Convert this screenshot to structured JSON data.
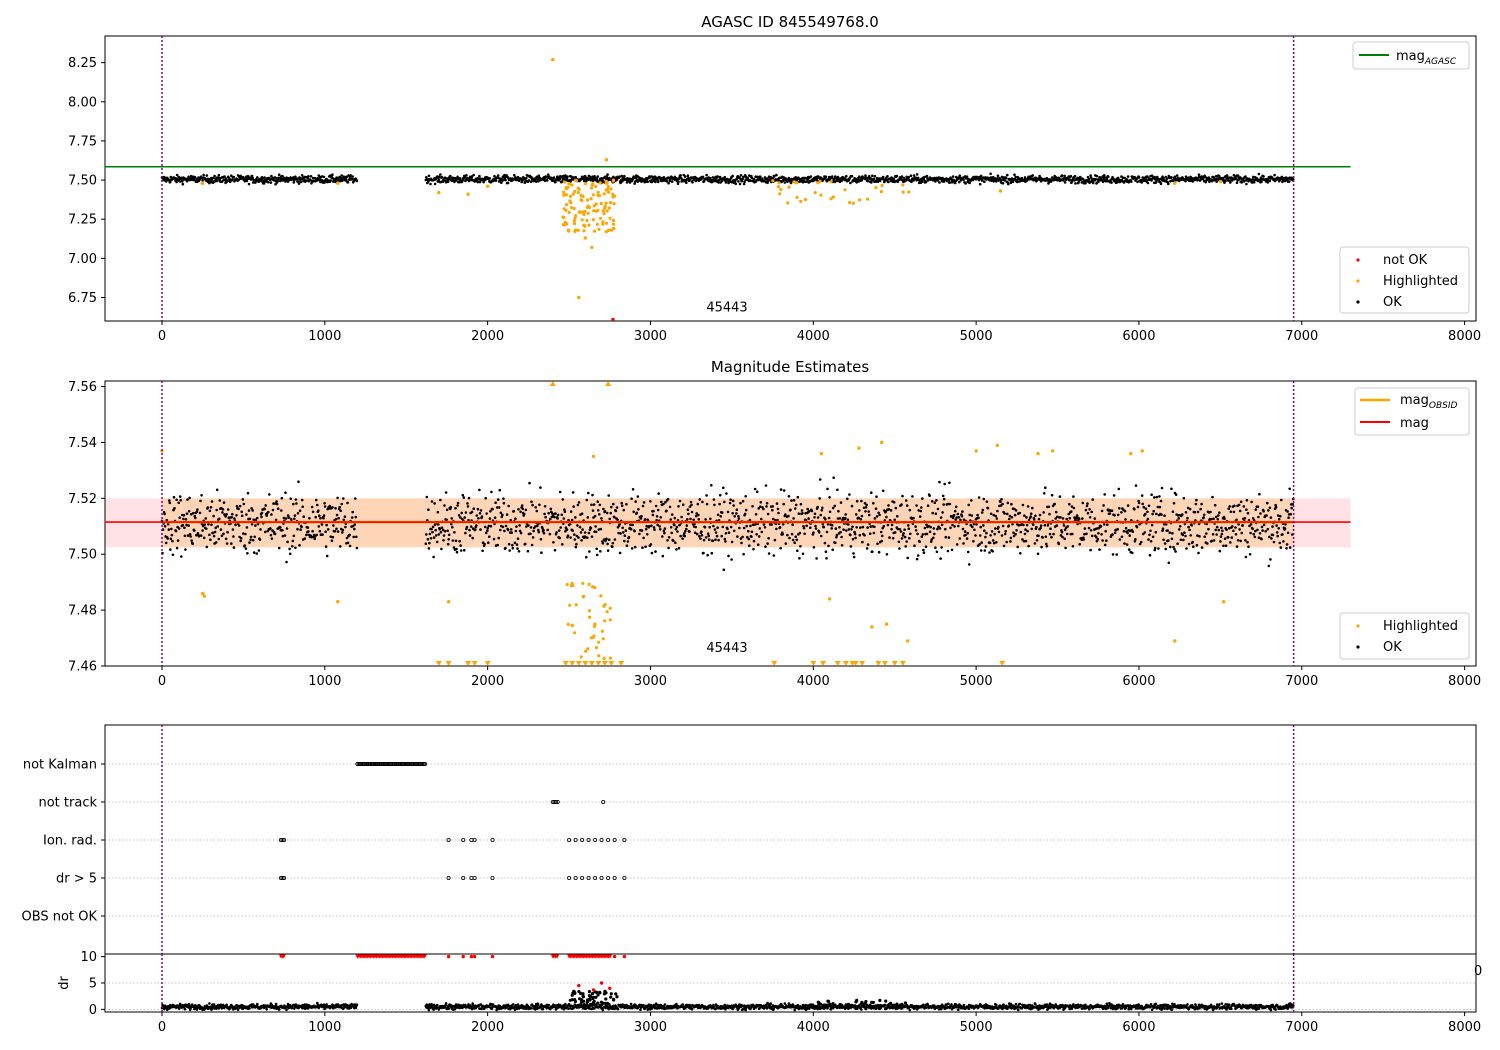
{
  "colors": {
    "ok": "#000000",
    "highlighted": "#ffa500",
    "not_ok": "#ff0000",
    "mag_agasc_line": "#008000",
    "mag_obsid_line": "#ffa500",
    "mag_line": "#ff0000",
    "band_fill": "#ffb6c1",
    "obsid_marker": "#800080"
  },
  "chart_data": [
    {
      "type": "scatter",
      "title": "AGASC ID 845549768.0",
      "xlabel": "",
      "ylabel": "",
      "xlim": [
        -350,
        8070
      ],
      "ylim": [
        6.6,
        8.42
      ],
      "xticks": [
        0,
        1000,
        2000,
        3000,
        4000,
        5000,
        6000,
        7000,
        8000
      ],
      "yticks": [
        6.75,
        7.0,
        7.25,
        7.5,
        7.75,
        8.0,
        8.25
      ],
      "ytick_labels": [
        "6.75",
        "7.00",
        "7.25",
        "7.50",
        "7.75",
        "8.00",
        "8.25"
      ],
      "obsid_lines_x": [
        0,
        6950
      ],
      "annotations": [
        {
          "text": "45443",
          "x": 3470,
          "y": 6.66
        }
      ],
      "reference_lines": [
        {
          "name": "mag",
          "sub": "AGASC",
          "value": 7.585,
          "x": [
            -350,
            7300
          ]
        }
      ],
      "legend_lines": {
        "position": "upper right",
        "entries": [
          {
            "name": "mag",
            "sub": "AGASC"
          }
        ]
      },
      "legend_points": {
        "position": "lower right",
        "entries": [
          "not OK",
          "Highlighted",
          "OK"
        ]
      },
      "series": [
        {
          "name": "OK",
          "kind": "band",
          "segments": [
            [
              0,
              1200
            ],
            [
              1620,
              6950
            ]
          ],
          "center": 7.505,
          "spread": 0.012
        },
        {
          "name": "Highlighted",
          "kind": "cluster",
          "x": [
            2460,
            2780
          ],
          "y": [
            7.17,
            7.5
          ],
          "n": 120
        },
        {
          "name": "Highlighted",
          "kind": "cluster",
          "x": [
            3750,
            4600
          ],
          "y": [
            7.35,
            7.5
          ],
          "n": 30
        },
        {
          "name": "Highlighted",
          "kind": "points",
          "x": [
            2400,
            2560,
            2730,
            2640,
            2600,
            1700,
            1880,
            5150,
            6220,
            6500,
            250,
            1080,
            2000
          ],
          "y": [
            8.27,
            6.75,
            7.63,
            7.07,
            7.13,
            7.42,
            7.41,
            7.43,
            7.48,
            7.49,
            7.48,
            7.48,
            7.46
          ]
        },
        {
          "name": "not OK",
          "kind": "points",
          "x": [
            2770
          ],
          "y": [
            6.61
          ]
        }
      ]
    },
    {
      "type": "scatter",
      "title": "Magnitude Estimates",
      "xlabel": "",
      "ylabel": "",
      "xlim": [
        -350,
        8070
      ],
      "ylim": [
        7.46,
        7.562
      ],
      "xticks": [
        0,
        1000,
        2000,
        3000,
        4000,
        5000,
        6000,
        7000,
        8000
      ],
      "yticks": [
        7.46,
        7.48,
        7.5,
        7.52,
        7.54,
        7.56
      ],
      "ytick_labels": [
        "7.46",
        "7.48",
        "7.50",
        "7.52",
        "7.54",
        "7.56"
      ],
      "obsid_lines_x": [
        0,
        6950
      ],
      "annotations": [
        {
          "text": "45443",
          "x": 3470,
          "y": 7.465
        }
      ],
      "band": {
        "low": 7.5025,
        "high": 7.52,
        "x": [
          -350,
          7300
        ]
      },
      "reference_lines": [
        {
          "name": "mag",
          "sub": "OBSID",
          "value": 7.5115,
          "x": [
            0,
            6950
          ]
        },
        {
          "name": "mag",
          "sub": "",
          "value": 7.5115,
          "x": [
            -350,
            7300
          ]
        }
      ],
      "legend_lines": {
        "position": "upper right",
        "entries": [
          {
            "name": "mag",
            "sub": "OBSID"
          },
          {
            "name": "mag",
            "sub": ""
          }
        ]
      },
      "legend_points": {
        "position": "lower right",
        "entries": [
          "Highlighted",
          "OK"
        ]
      },
      "series": [
        {
          "name": "OK",
          "kind": "band",
          "segments": [
            [
              0,
              1200
            ],
            [
              1620,
              6950
            ]
          ],
          "center": 7.511,
          "spread": 0.0055
        },
        {
          "name": "Highlighted",
          "kind": "cluster",
          "x": [
            2480,
            2780
          ],
          "y": [
            7.462,
            7.49
          ],
          "n": 40
        },
        {
          "name": "Highlighted",
          "kind": "points",
          "x": [
            0,
            250,
            260,
            1080,
            1760,
            2650,
            4050,
            4100,
            4280,
            4360,
            4420,
            4450,
            4580,
            5000,
            5130,
            5380,
            5470,
            5950,
            6020,
            6220,
            6520
          ],
          "y": [
            7.537,
            7.486,
            7.485,
            7.483,
            7.483,
            7.535,
            7.536,
            7.484,
            7.538,
            7.474,
            7.54,
            7.475,
            7.469,
            7.537,
            7.539,
            7.536,
            7.537,
            7.536,
            7.537,
            7.469,
            7.483
          ]
        },
        {
          "name": "Highlighted",
          "kind": "up_markers",
          "x": [
            2400,
            2740
          ]
        },
        {
          "name": "Highlighted",
          "kind": "down_markers",
          "x": [
            1700,
            1760,
            1880,
            1920,
            2000,
            2480,
            2520,
            2560,
            2600,
            2640,
            2680,
            2720,
            2760,
            2820,
            3760,
            4000,
            4060,
            4150,
            4200,
            4240,
            4260,
            4300,
            4400,
            4440,
            4500,
            4550,
            5160
          ]
        }
      ]
    },
    {
      "type": "scatter",
      "title": "",
      "xlabel": "",
      "ylabel": "",
      "categories": [
        "not Kalman",
        "not track",
        "Ion. rad.",
        "dr > 5",
        "OBS not OK"
      ],
      "xlim": [
        -350,
        8070
      ],
      "obsid_lines_x": [
        0,
        6950
      ],
      "series": [
        {
          "name": "not Kalman",
          "kind": "runs",
          "segments": [
            [
              1200,
              1620
            ]
          ]
        },
        {
          "name": "not track",
          "kind": "points",
          "x": [
            2400,
            2410,
            2420,
            2430,
            2710
          ]
        },
        {
          "name": "Ion. rad.",
          "kind": "points",
          "x": [
            730,
            740,
            750,
            1760,
            1850,
            1900,
            1920,
            2030,
            2500,
            2540,
            2580,
            2620,
            2660,
            2700,
            2740,
            2780,
            2840
          ]
        },
        {
          "name": "dr > 5",
          "kind": "points",
          "x": [
            730,
            740,
            750,
            1760,
            1850,
            1900,
            1920,
            2030,
            2500,
            2540,
            2580,
            2620,
            2660,
            2700,
            2740,
            2780,
            2840
          ]
        },
        {
          "name": "OBS not OK",
          "kind": "points",
          "x": []
        }
      ]
    },
    {
      "type": "scatter",
      "title": "",
      "xlabel": "",
      "ylabel": "dr",
      "xlim": [
        -350,
        8070
      ],
      "ylim": [
        -0.5,
        10.5
      ],
      "xticks": [
        0,
        1000,
        2000,
        3000,
        4000,
        5000,
        6000,
        7000,
        8000
      ],
      "yticks": [
        0,
        5,
        10
      ],
      "ytick_labels": [
        "0",
        "5",
        "10"
      ],
      "stray_tick_label": "0",
      "obsid_lines_x": [
        0,
        6950
      ],
      "series": [
        {
          "name": "OK",
          "kind": "band",
          "segments": [
            [
              0,
              1200
            ],
            [
              1620,
              6950
            ]
          ],
          "center": 0.5,
          "spread": 0.25
        },
        {
          "name": "OK",
          "kind": "cluster",
          "x": [
            2500,
            2800
          ],
          "y": [
            0.5,
            3.5
          ],
          "n": 60
        },
        {
          "name": "OK",
          "kind": "cluster",
          "x": [
            4000,
            4600
          ],
          "y": [
            0.3,
            1.8
          ],
          "n": 40
        },
        {
          "name": "not OK",
          "kind": "runs_at",
          "y": 10,
          "segments": [
            [
              1200,
              1620
            ],
            [
              730,
              750
            ],
            [
              2400,
              2430
            ],
            [
              2500,
              2760
            ]
          ]
        },
        {
          "name": "not OK",
          "kind": "points",
          "x": [
            1760,
            1850,
            1900,
            1920,
            2030,
            2780,
            2840,
            2560,
            2650,
            2700,
            2750
          ],
          "y": [
            10,
            10,
            10,
            10,
            10,
            10,
            10,
            4.5,
            3.7,
            5.0,
            4.0
          ]
        }
      ]
    }
  ]
}
